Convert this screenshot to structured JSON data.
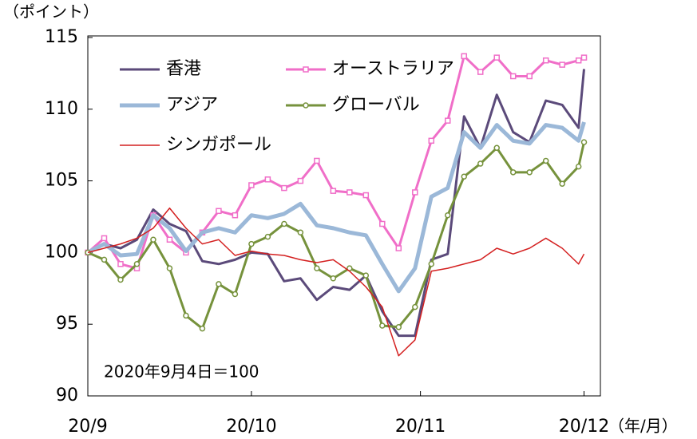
{
  "chart_data": {
    "type": "line",
    "y_unit_label": "（ポイント）",
    "x_unit_label": "（年/月）",
    "annotation": "2020年9月4日＝100",
    "x": [
      0,
      3,
      6,
      9,
      12,
      15,
      18,
      21,
      24,
      27,
      30,
      33,
      36,
      39,
      42,
      45,
      48,
      51,
      54,
      57,
      60,
      63,
      66,
      69,
      72,
      75,
      78,
      81,
      84,
      87,
      90,
      91
    ],
    "xlim": [
      0,
      94
    ],
    "xticks": [
      {
        "value": 0,
        "label": "20/9"
      },
      {
        "value": 30,
        "label": "20/10"
      },
      {
        "value": 61,
        "label": "20/11"
      },
      {
        "value": 91,
        "label": "20/12"
      }
    ],
    "ylim": [
      90,
      115
    ],
    "yticks": [
      90,
      95,
      100,
      105,
      110,
      115
    ],
    "series": [
      {
        "name": "香港",
        "color": "#5b4a7a",
        "line_width": 3,
        "marker": "none",
        "values": [
          100,
          100.6,
          100.3,
          100.9,
          103,
          102,
          101.5,
          99.4,
          99.2,
          99.5,
          100,
          99.9,
          98,
          98.2,
          96.7,
          97.6,
          97.4,
          98.4,
          95.9,
          94.2,
          94.2,
          99.5,
          99.9,
          109.5,
          107.3,
          111,
          108.4,
          107.7,
          110.6,
          110.3,
          108.7,
          112.8
        ]
      },
      {
        "name": "オーストラリア",
        "color": "#f06ec8",
        "line_width": 3,
        "marker": "square",
        "values": [
          100,
          101,
          99.2,
          98.9,
          102.6,
          100.9,
          100,
          101.4,
          102.9,
          102.6,
          104.7,
          105.1,
          104.5,
          105,
          106.4,
          104.3,
          104.2,
          104,
          102,
          100.3,
          104.2,
          107.8,
          109.2,
          113.7,
          112.6,
          113.6,
          112.3,
          112.3,
          113.4,
          113.1,
          113.4,
          113.6
        ]
      },
      {
        "name": "アジア",
        "color": "#9bb8d8",
        "line_width": 5,
        "marker": "none",
        "values": [
          100,
          100.6,
          99.8,
          99.9,
          102.6,
          101.7,
          100.1,
          101.4,
          101.7,
          101.4,
          102.6,
          102.4,
          102.7,
          103.4,
          101.9,
          101.7,
          101.4,
          101.2,
          99.2,
          97.3,
          98.9,
          103.9,
          104.5,
          108.4,
          107.3,
          108.9,
          107.8,
          107.6,
          108.9,
          108.7,
          107.8,
          109.1
        ]
      },
      {
        "name": "グローバル",
        "color": "#76923c",
        "line_width": 3,
        "marker": "circle",
        "values": [
          100,
          99.5,
          98.1,
          99.2,
          100.9,
          98.9,
          95.6,
          94.7,
          97.8,
          97.1,
          100.6,
          101.1,
          102,
          101.4,
          98.9,
          98.2,
          98.9,
          98.4,
          94.9,
          94.8,
          96.2,
          99.2,
          102.6,
          105.3,
          106.2,
          107.3,
          105.6,
          105.6,
          106.4,
          104.8,
          106,
          107.7
        ]
      },
      {
        "name": "シンガポール",
        "color": "#d42020",
        "line_width": 1.5,
        "marker": "none",
        "values": [
          100,
          100.3,
          100.6,
          101,
          101.7,
          103.1,
          101.7,
          100.6,
          100.9,
          99.8,
          100.1,
          99.9,
          99.8,
          99.5,
          99.3,
          99.5,
          98.7,
          97.6,
          96.2,
          92.8,
          93.9,
          98.7,
          98.9,
          99.2,
          99.5,
          100.3,
          99.9,
          100.3,
          101,
          100.3,
          99.2,
          99.9
        ]
      }
    ]
  }
}
